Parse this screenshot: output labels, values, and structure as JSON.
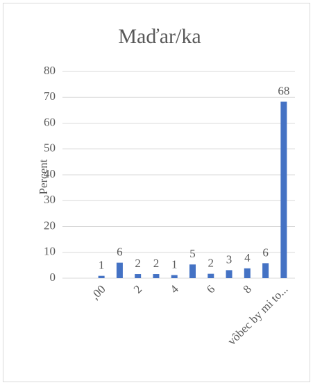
{
  "chart_data": {
    "type": "bar",
    "title": "Maďar/ka",
    "y_label": "Percent",
    "categories": [
      ",00",
      null,
      "2",
      null,
      "4",
      null,
      "6",
      null,
      "8",
      null,
      "vôbec by mi to..."
    ],
    "values": [
      0.9,
      6.0,
      1.6,
      1.6,
      1.2,
      5.3,
      1.7,
      3.1,
      3.8,
      5.8,
      68.3
    ],
    "value_labels": [
      "1",
      "6",
      "2",
      "2",
      "1",
      "5",
      "2",
      "3",
      "4",
      "6",
      "68"
    ],
    "color": "#4472c4",
    "ylim": [
      0,
      80
    ],
    "yticks": [
      0,
      10,
      20,
      30,
      40,
      50,
      60,
      70,
      80
    ],
    "grid": true
  }
}
